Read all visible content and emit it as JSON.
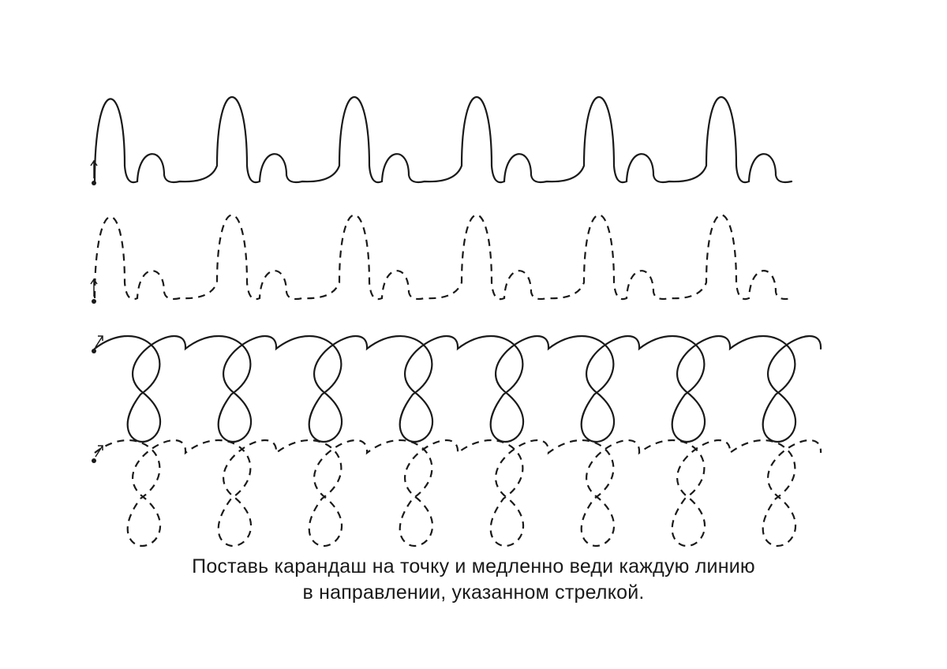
{
  "worksheet": {
    "instructions": {
      "line1": "Поставь карандаш на точку и медленно веди каждую линию",
      "line2": "в направлении, указанном стрелкой."
    },
    "rows": [
      {
        "pattern": "tall-short-arches",
        "style": "solid",
        "repeats": 6
      },
      {
        "pattern": "tall-short-arches",
        "style": "dashed",
        "repeats": 6
      },
      {
        "pattern": "loops",
        "style": "solid",
        "repeats": 8
      },
      {
        "pattern": "loops",
        "style": "dashed",
        "repeats": 8
      }
    ],
    "ink_color": "#1a1a1a"
  }
}
